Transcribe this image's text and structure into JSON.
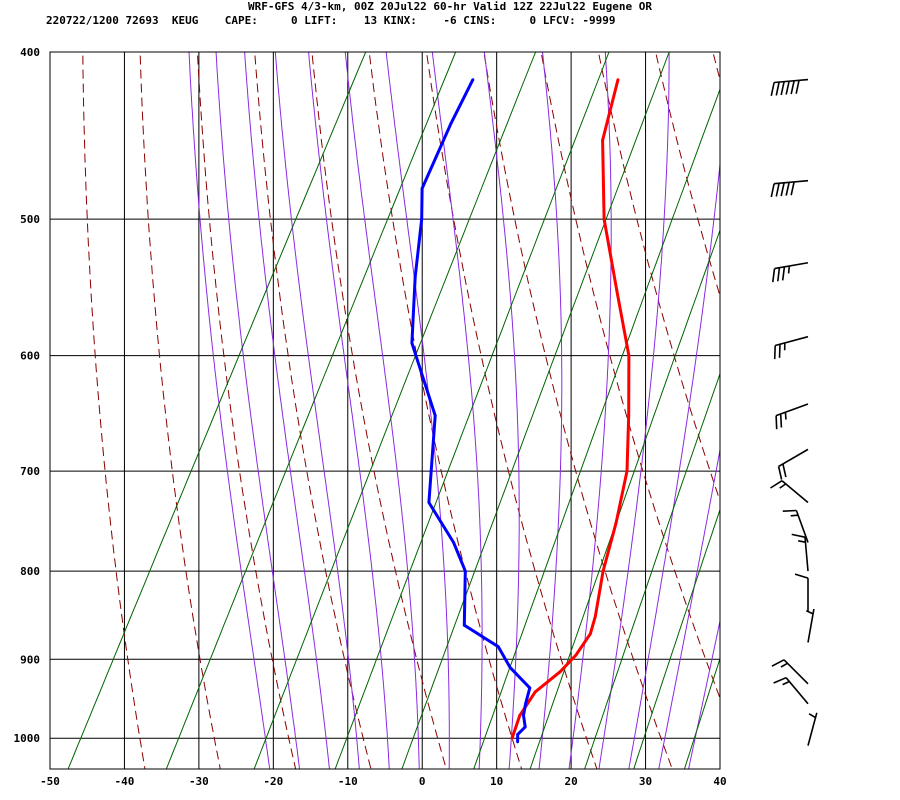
{
  "header": {
    "title": "WRF-GFS 4/3-km, 00Z 20Jul22 60-hr Valid 12Z 22Jul22 Eugene OR",
    "subtitle": "220722/1200 72693  KEUG    CAPE:     0 LIFT:    13 KINX:    -6 CINS:     0 LFCV: -9999"
  },
  "colors": {
    "temperature": "#ff0000",
    "dewpoint": "#0000ff",
    "isotherm_grid": "#000000",
    "dry_adiabat": "#8b0000",
    "moist_adiabat": "#8a2be2",
    "mixing_ratio": "#006400",
    "wind_barb": "#000000"
  },
  "chart_data": {
    "type": "line",
    "title": "WRF-GFS 4/3-km, 00Z 20Jul22 60-hr Valid 12Z 22Jul22 Eugene OR",
    "xlabel": "",
    "ylabel": "",
    "xlim": [
      -50,
      40
    ],
    "pressure_range": [
      400,
      1042
    ],
    "x_ticks": [
      "-50",
      "-40",
      "-30",
      "-20",
      "-10",
      "0",
      "10",
      "20",
      "30",
      "40"
    ],
    "y_ticks": [
      "400",
      "500",
      "600",
      "700",
      "800",
      "900",
      "1000"
    ],
    "grid": true,
    "series": [
      {
        "key": "temperature",
        "points": [
          {
            "p": 1000,
            "t": 10
          },
          {
            "p": 970,
            "t": 9.5
          },
          {
            "p": 940,
            "t": 10
          },
          {
            "p": 915,
            "t": 12
          },
          {
            "p": 895,
            "t": 13
          },
          {
            "p": 870,
            "t": 13.5
          },
          {
            "p": 850,
            "t": 13
          },
          {
            "p": 800,
            "t": 11
          },
          {
            "p": 750,
            "t": 9.5
          },
          {
            "p": 700,
            "t": 7.5
          },
          {
            "p": 650,
            "t": 4
          },
          {
            "p": 600,
            "t": 0
          },
          {
            "p": 550,
            "t": -6
          },
          {
            "p": 500,
            "t": -12.5
          },
          {
            "p": 450,
            "t": -18
          },
          {
            "p": 415,
            "t": -20
          }
        ]
      },
      {
        "key": "dewpoint",
        "points": [
          {
            "p": 1005,
            "t": 11
          },
          {
            "p": 995,
            "t": 10.5
          },
          {
            "p": 985,
            "t": 11
          },
          {
            "p": 970,
            "t": 10
          },
          {
            "p": 955,
            "t": 9.5
          },
          {
            "p": 935,
            "t": 9
          },
          {
            "p": 910,
            "t": 5
          },
          {
            "p": 885,
            "t": 2
          },
          {
            "p": 860,
            "t": -4
          },
          {
            "p": 800,
            "t": -7.5
          },
          {
            "p": 770,
            "t": -11
          },
          {
            "p": 730,
            "t": -17
          },
          {
            "p": 650,
            "t": -22
          },
          {
            "p": 590,
            "t": -30
          },
          {
            "p": 540,
            "t": -34
          },
          {
            "p": 500,
            "t": -37
          },
          {
            "p": 480,
            "t": -39
          },
          {
            "p": 440,
            "t": -39.5
          },
          {
            "p": 415,
            "t": -39.5
          }
        ]
      }
    ],
    "wind_barbs": [
      {
        "p": 415,
        "dir": 265,
        "spd": 60
      },
      {
        "p": 475,
        "dir": 265,
        "spd": 50
      },
      {
        "p": 530,
        "dir": 260,
        "spd": 35
      },
      {
        "p": 585,
        "dir": 255,
        "spd": 25
      },
      {
        "p": 640,
        "dir": 250,
        "spd": 25
      },
      {
        "p": 680,
        "dir": 240,
        "spd": 20
      },
      {
        "p": 730,
        "dir": 310,
        "spd": 15
      },
      {
        "p": 770,
        "dir": 340,
        "spd": 15
      },
      {
        "p": 800,
        "dir": 355,
        "spd": 15
      },
      {
        "p": 845,
        "dir": 360,
        "spd": 10
      },
      {
        "p": 880,
        "dir": 10,
        "spd": 5
      },
      {
        "p": 930,
        "dir": 315,
        "spd": 15
      },
      {
        "p": 955,
        "dir": 320,
        "spd": 15
      },
      {
        "p": 1010,
        "dir": 15,
        "spd": 5
      }
    ]
  }
}
